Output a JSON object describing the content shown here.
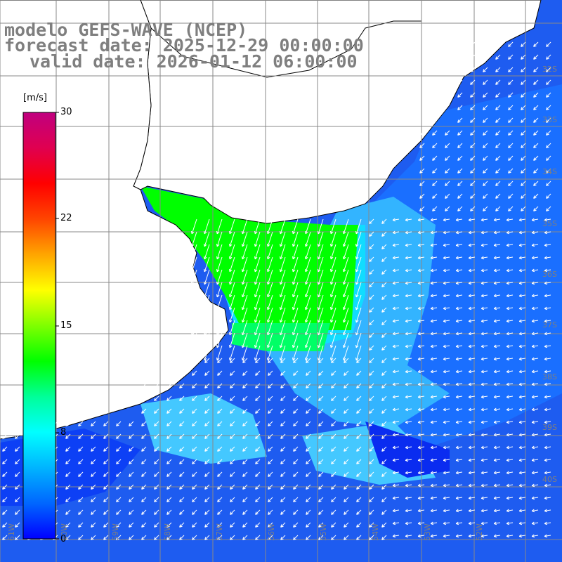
{
  "title": {
    "line1": "modelo GEFS-WAVE (NCEP)",
    "line2": "forecast date: 2025-12-29 00:00:00",
    "line3": "valid date: 2026-01-12 06:00:00"
  },
  "colorbar": {
    "unit": "[m/s]",
    "min": 0,
    "max": 30,
    "ticks": [
      "30",
      "22",
      "15",
      "8",
      "0"
    ],
    "colors": [
      "#0000ff",
      "#0066ff",
      "#00b4ff",
      "#00ffff",
      "#00ff99",
      "#00ff00",
      "#7fff00",
      "#ffff00",
      "#ffa500",
      "#ff4500",
      "#ff0000",
      "#e00050",
      "#c0007f"
    ]
  },
  "map": {
    "lat_labels": [
      "32S",
      "33S",
      "34S",
      "35S",
      "36S",
      "37S",
      "38S",
      "39S",
      "40S"
    ],
    "lon_labels": [
      "61W",
      "60W",
      "59W",
      "58W",
      "57W",
      "56W",
      "55W",
      "54W",
      "53W",
      "52W"
    ],
    "colors": {
      "land": "#ffffff",
      "grid": "#888888",
      "coast": "#000000",
      "arrows": "#ffffff",
      "label": "#7f7f7f"
    }
  }
}
